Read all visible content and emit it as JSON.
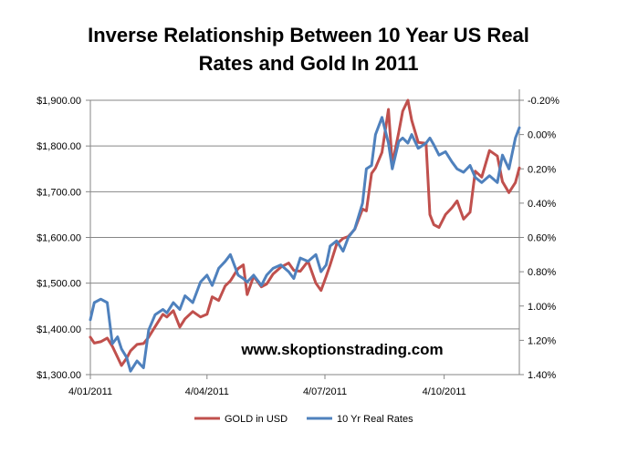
{
  "chart_data": {
    "type": "line",
    "title_lines": [
      "Inverse Relationship Between 10 Year US Real",
      "Rates and Gold In 2011"
    ],
    "watermark": "www.skoptionstrading.com",
    "x_axis": {
      "range": [
        "2011-01-04",
        "2011-12-01"
      ],
      "tick_labels": [
        {
          "label": "4/01/2011",
          "date": "2011-01-04"
        },
        {
          "label": "4/04/2011",
          "date": "2011-04-04"
        },
        {
          "label": "4/07/2011",
          "date": "2011-07-04"
        },
        {
          "label": "4/10/2011",
          "date": "2011-10-04"
        }
      ]
    },
    "y_left": {
      "range": [
        1300,
        1900
      ],
      "ticks": [
        1300,
        1400,
        1500,
        1600,
        1700,
        1800,
        1900
      ],
      "tick_labels": [
        "$1,300.00",
        "$1,400.00",
        "$1,500.00",
        "$1,600.00",
        "$1,700.00",
        "$1,800.00",
        "$1,900.00"
      ]
    },
    "y_right": {
      "range": [
        -0.2,
        1.4
      ],
      "reversed": true,
      "ticks": [
        -0.2,
        0,
        0.2,
        0.4,
        0.6,
        0.8,
        1.0,
        1.2,
        1.4
      ],
      "tick_labels": [
        "-0.20%",
        "0.00%",
        "0.20%",
        "0.40%",
        "0.60%",
        "0.80%",
        "1.00%",
        "1.20%",
        "1.40%"
      ]
    },
    "grid": "horizontal",
    "legend_position": "bottom",
    "series": [
      {
        "name": "GOLD in USD",
        "axis": "left",
        "color": "#C0504D",
        "points": [
          [
            "2011-01-04",
            1382
          ],
          [
            "2011-01-07",
            1369
          ],
          [
            "2011-01-12",
            1372
          ],
          [
            "2011-01-17",
            1380
          ],
          [
            "2011-01-21",
            1362
          ],
          [
            "2011-01-25",
            1338
          ],
          [
            "2011-01-28",
            1320
          ],
          [
            "2011-02-01",
            1336
          ],
          [
            "2011-02-04",
            1352
          ],
          [
            "2011-02-09",
            1366
          ],
          [
            "2011-02-14",
            1368
          ],
          [
            "2011-02-18",
            1382
          ],
          [
            "2011-02-23",
            1405
          ],
          [
            "2011-03-01",
            1432
          ],
          [
            "2011-03-04",
            1426
          ],
          [
            "2011-03-09",
            1440
          ],
          [
            "2011-03-14",
            1404
          ],
          [
            "2011-03-18",
            1422
          ],
          [
            "2011-03-24",
            1438
          ],
          [
            "2011-03-30",
            1426
          ],
          [
            "2011-04-04",
            1432
          ],
          [
            "2011-04-08",
            1470
          ],
          [
            "2011-04-13",
            1462
          ],
          [
            "2011-04-18",
            1494
          ],
          [
            "2011-04-22",
            1505
          ],
          [
            "2011-04-28",
            1532
          ],
          [
            "2011-05-02",
            1540
          ],
          [
            "2011-05-05",
            1475
          ],
          [
            "2011-05-10",
            1515
          ],
          [
            "2011-05-16",
            1492
          ],
          [
            "2011-05-20",
            1498
          ],
          [
            "2011-05-25",
            1520
          ],
          [
            "2011-05-31",
            1535
          ],
          [
            "2011-06-06",
            1544
          ],
          [
            "2011-06-10",
            1528
          ],
          [
            "2011-06-15",
            1526
          ],
          [
            "2011-06-21",
            1548
          ],
          [
            "2011-06-27",
            1500
          ],
          [
            "2011-07-01",
            1484
          ],
          [
            "2011-07-05",
            1515
          ],
          [
            "2011-07-08",
            1540
          ],
          [
            "2011-07-13",
            1585
          ],
          [
            "2011-07-18",
            1598
          ],
          [
            "2011-07-22",
            1602
          ],
          [
            "2011-07-27",
            1618
          ],
          [
            "2011-08-02",
            1662
          ],
          [
            "2011-08-05",
            1658
          ],
          [
            "2011-08-09",
            1740
          ],
          [
            "2011-08-12",
            1752
          ],
          [
            "2011-08-17",
            1786
          ],
          [
            "2011-08-22",
            1880
          ],
          [
            "2011-08-25",
            1760
          ],
          [
            "2011-08-30",
            1830
          ],
          [
            "2011-09-02",
            1876
          ],
          [
            "2011-09-06",
            1900
          ],
          [
            "2011-09-09",
            1856
          ],
          [
            "2011-09-14",
            1808
          ],
          [
            "2011-09-20",
            1806
          ],
          [
            "2011-09-23",
            1650
          ],
          [
            "2011-09-26",
            1628
          ],
          [
            "2011-09-30",
            1622
          ],
          [
            "2011-10-05",
            1650
          ],
          [
            "2011-10-10",
            1665
          ],
          [
            "2011-10-14",
            1680
          ],
          [
            "2011-10-19",
            1640
          ],
          [
            "2011-10-24",
            1655
          ],
          [
            "2011-10-28",
            1745
          ],
          [
            "2011-11-02",
            1732
          ],
          [
            "2011-11-08",
            1790
          ],
          [
            "2011-11-14",
            1778
          ],
          [
            "2011-11-18",
            1722
          ],
          [
            "2011-11-23",
            1698
          ],
          [
            "2011-11-28",
            1720
          ],
          [
            "2011-12-01",
            1752
          ]
        ]
      },
      {
        "name": "10 Yr Real Rates",
        "axis": "right",
        "color": "#4F81BD",
        "points": [
          [
            "2011-01-04",
            1.08
          ],
          [
            "2011-01-07",
            0.98
          ],
          [
            "2011-01-12",
            0.96
          ],
          [
            "2011-01-17",
            0.98
          ],
          [
            "2011-01-21",
            1.22
          ],
          [
            "2011-01-25",
            1.18
          ],
          [
            "2011-01-28",
            1.25
          ],
          [
            "2011-02-01",
            1.3
          ],
          [
            "2011-02-04",
            1.38
          ],
          [
            "2011-02-09",
            1.32
          ],
          [
            "2011-02-14",
            1.36
          ],
          [
            "2011-02-18",
            1.14
          ],
          [
            "2011-02-23",
            1.05
          ],
          [
            "2011-03-01",
            1.02
          ],
          [
            "2011-03-04",
            1.04
          ],
          [
            "2011-03-09",
            0.98
          ],
          [
            "2011-03-14",
            1.02
          ],
          [
            "2011-03-18",
            0.94
          ],
          [
            "2011-03-24",
            0.98
          ],
          [
            "2011-03-30",
            0.86
          ],
          [
            "2011-04-04",
            0.82
          ],
          [
            "2011-04-08",
            0.88
          ],
          [
            "2011-04-13",
            0.78
          ],
          [
            "2011-04-18",
            0.74
          ],
          [
            "2011-04-22",
            0.7
          ],
          [
            "2011-04-28",
            0.82
          ],
          [
            "2011-05-02",
            0.84
          ],
          [
            "2011-05-05",
            0.86
          ],
          [
            "2011-05-10",
            0.82
          ],
          [
            "2011-05-16",
            0.88
          ],
          [
            "2011-05-20",
            0.82
          ],
          [
            "2011-05-25",
            0.78
          ],
          [
            "2011-05-31",
            0.76
          ],
          [
            "2011-06-06",
            0.8
          ],
          [
            "2011-06-10",
            0.84
          ],
          [
            "2011-06-15",
            0.72
          ],
          [
            "2011-06-21",
            0.74
          ],
          [
            "2011-06-27",
            0.7
          ],
          [
            "2011-07-01",
            0.8
          ],
          [
            "2011-07-05",
            0.76
          ],
          [
            "2011-07-08",
            0.65
          ],
          [
            "2011-07-13",
            0.62
          ],
          [
            "2011-07-18",
            0.68
          ],
          [
            "2011-07-22",
            0.6
          ],
          [
            "2011-07-27",
            0.55
          ],
          [
            "2011-08-02",
            0.4
          ],
          [
            "2011-08-05",
            0.2
          ],
          [
            "2011-08-09",
            0.18
          ],
          [
            "2011-08-12",
            0.0
          ],
          [
            "2011-08-17",
            -0.1
          ],
          [
            "2011-08-22",
            0.05
          ],
          [
            "2011-08-25",
            0.2
          ],
          [
            "2011-08-30",
            0.04
          ],
          [
            "2011-09-02",
            0.02
          ],
          [
            "2011-09-06",
            0.05
          ],
          [
            "2011-09-09",
            0.0
          ],
          [
            "2011-09-14",
            0.08
          ],
          [
            "2011-09-20",
            0.05
          ],
          [
            "2011-09-23",
            0.02
          ],
          [
            "2011-09-26",
            0.06
          ],
          [
            "2011-09-30",
            0.12
          ],
          [
            "2011-10-05",
            0.1
          ],
          [
            "2011-10-10",
            0.16
          ],
          [
            "2011-10-14",
            0.2
          ],
          [
            "2011-10-19",
            0.22
          ],
          [
            "2011-10-24",
            0.18
          ],
          [
            "2011-10-28",
            0.25
          ],
          [
            "2011-11-02",
            0.28
          ],
          [
            "2011-11-08",
            0.24
          ],
          [
            "2011-11-14",
            0.28
          ],
          [
            "2011-11-18",
            0.12
          ],
          [
            "2011-11-23",
            0.2
          ],
          [
            "2011-11-28",
            0.02
          ],
          [
            "2011-12-01",
            -0.04
          ]
        ]
      }
    ]
  }
}
